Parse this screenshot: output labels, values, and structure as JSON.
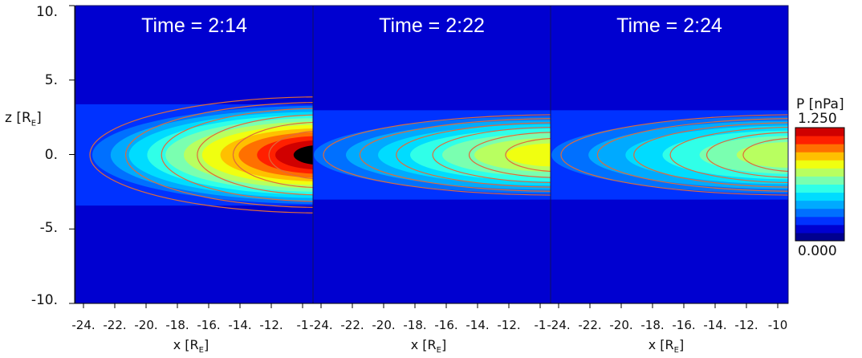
{
  "chart_data": {
    "type": "heatmap",
    "panels": [
      {
        "title": "Time = 2:14",
        "xticks": [
          "-24.",
          "-22.",
          "-20.",
          "-18.",
          "-16.",
          "-14.",
          "-12.",
          "-1"
        ],
        "xlabel": "x [R",
        "xlabel_sub": "E",
        "xlabel_end": "]",
        "peak": 1.2
      },
      {
        "title": "Time = 2:22",
        "xticks": [
          "-24.",
          "-22.",
          "-20.",
          "-18.",
          "-16.",
          "-14.",
          "-12.",
          "-1"
        ],
        "xlabel": "x [R",
        "xlabel_sub": "E",
        "xlabel_end": "]",
        "peak": 0.75
      },
      {
        "title": "Time = 2:24",
        "xticks": [
          "-24.",
          "-22.",
          "-20.",
          "-18.",
          "-16.",
          "-14.",
          "-12.",
          "-10"
        ],
        "xlabel": "x [R",
        "xlabel_sub": "E",
        "xlabel_end": "]",
        "peak": 0.6
      }
    ],
    "xlim": [
      -25,
      -11
    ],
    "ylim": [
      -10,
      10
    ],
    "yticks": [
      "10.",
      "5.",
      "0.",
      "-5.",
      "-10."
    ],
    "ylabel": "z [R",
    "ylabel_sub": "E",
    "ylabel_end": "]",
    "colorbar": {
      "title": "P  [nPa]",
      "max_label": "1.250",
      "min_label": "0.000",
      "min": 0.0,
      "max": 1.25
    }
  },
  "colors": [
    "#00008f",
    "#0000d0",
    "#0032ff",
    "#0070ff",
    "#00aaff",
    "#00dcff",
    "#30ffe8",
    "#7affb0",
    "#b8ff60",
    "#f0ff10",
    "#ffc000",
    "#ff7000",
    "#ff2000",
    "#d00000"
  ]
}
